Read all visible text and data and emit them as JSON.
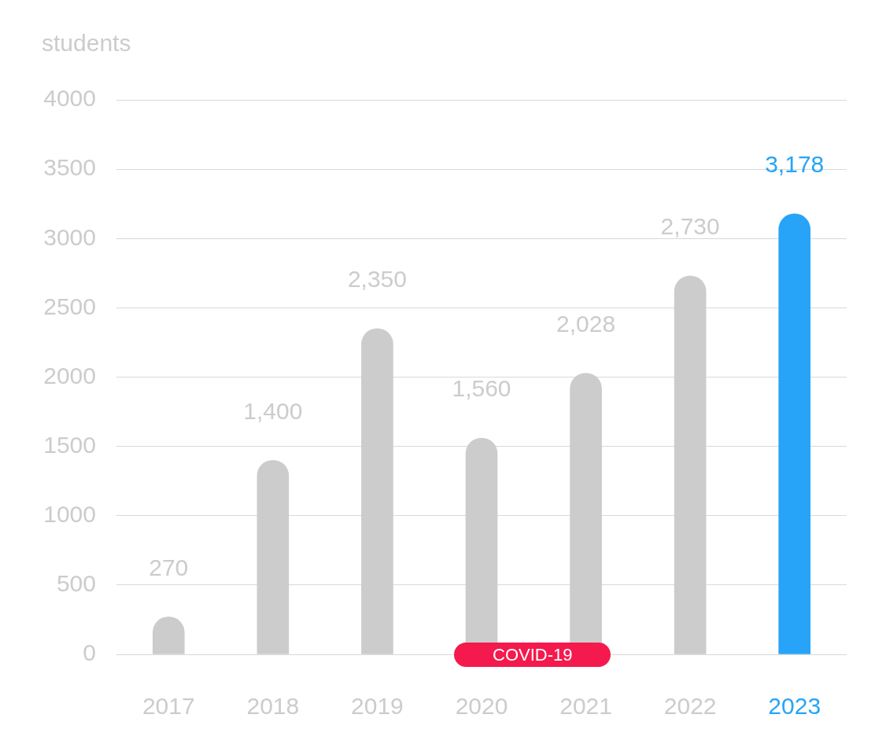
{
  "chart_data": {
    "type": "bar",
    "ylabel": "students",
    "categories": [
      "2017",
      "2018",
      "2019",
      "2020",
      "2021",
      "2022",
      "2023"
    ],
    "values": [
      270,
      1400,
      2350,
      1560,
      2028,
      2730,
      3178
    ],
    "value_labels": [
      "270",
      "1,400",
      "2,350",
      "1,560",
      "2,028",
      "2,730",
      "3,178"
    ],
    "colors": [
      "#cccccc",
      "#cccccc",
      "#cccccc",
      "#cccccc",
      "#cccccc",
      "#cccccc",
      "#27a4f7"
    ],
    "ylim": [
      0,
      4000
    ],
    "yticks": [
      0,
      500,
      1000,
      1500,
      2000,
      2500,
      3000,
      3500,
      4000
    ],
    "grid": "y",
    "annotations": [
      {
        "text": "COVID-19",
        "x": "2020",
        "y": 0
      }
    ]
  }
}
